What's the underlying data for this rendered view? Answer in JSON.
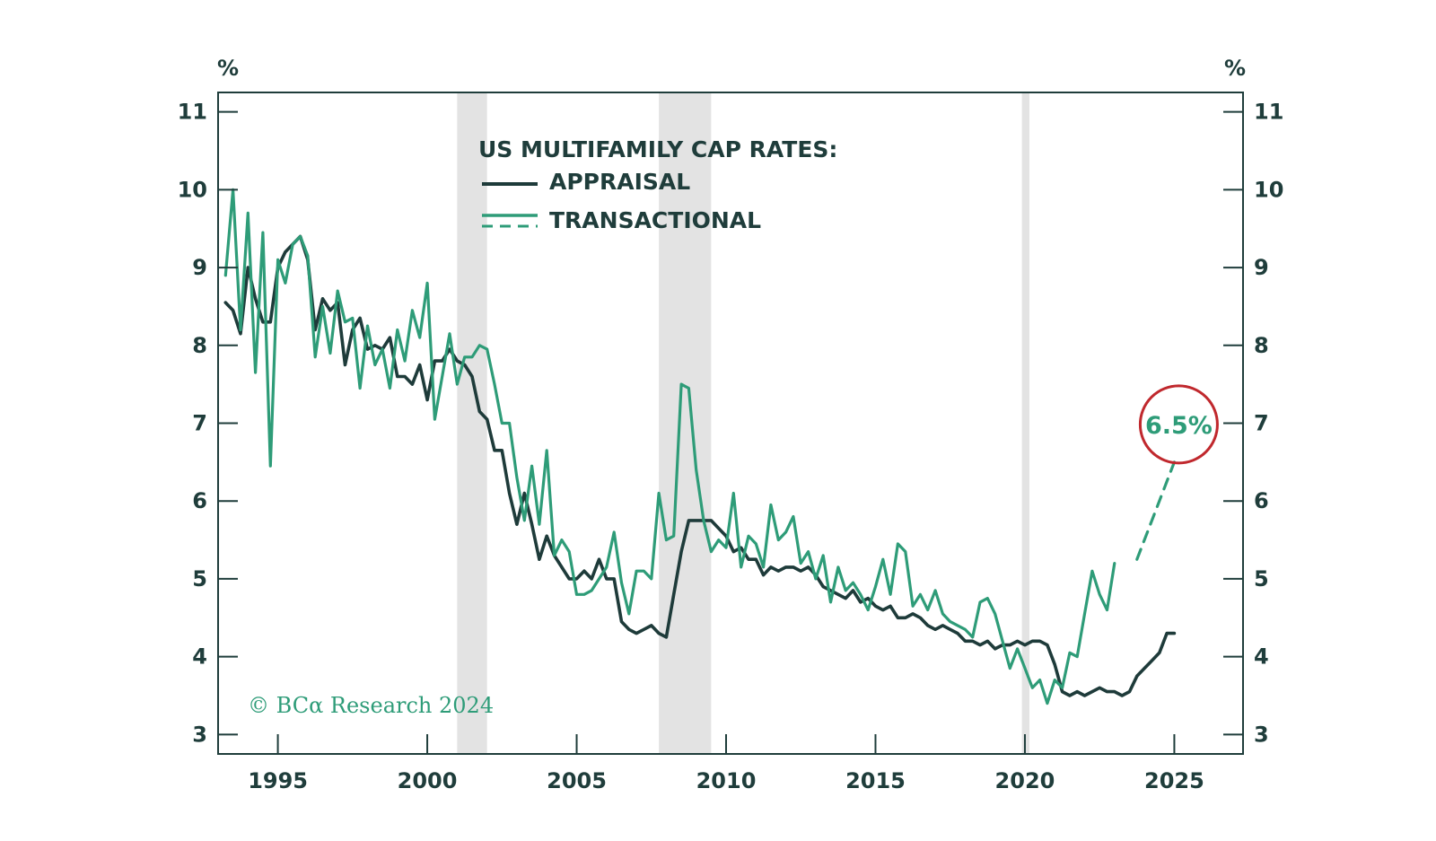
{
  "chart_data": {
    "type": "line",
    "title": "US MULTIFAMILY CAP RATES:",
    "ylabel_left": "%",
    "ylabel_right": "%",
    "ylim": [
      2.75,
      11.25
    ],
    "xlim": [
      1993.0,
      2027.3
    ],
    "yticks": [
      3,
      4,
      5,
      6,
      7,
      8,
      9,
      10,
      11
    ],
    "xticks": [
      1995,
      2000,
      2005,
      2010,
      2015,
      2020,
      2025
    ],
    "legend": {
      "appraisal_label": "APPRAISAL",
      "transactional_label": "TRANSACTIONAL"
    },
    "recessions": [
      [
        2001.0,
        2002.0
      ],
      [
        2007.75,
        2009.5
      ],
      [
        2019.9,
        2020.15
      ]
    ],
    "series": [
      {
        "name": "APPRAISAL",
        "color": "#1e3b3a",
        "start": 1993.25,
        "step": 0.25,
        "values": [
          8.55,
          8.45,
          8.15,
          9.0,
          8.6,
          8.3,
          8.3,
          9.0,
          9.2,
          9.3,
          9.4,
          9.1,
          8.2,
          8.6,
          8.45,
          8.55,
          7.75,
          8.2,
          8.35,
          7.95,
          8.0,
          7.95,
          8.1,
          7.6,
          7.6,
          7.5,
          7.75,
          7.3,
          7.8,
          7.8,
          7.95,
          7.8,
          7.75,
          7.6,
          7.15,
          7.05,
          6.65,
          6.65,
          6.1,
          5.7,
          6.1,
          5.7,
          5.25,
          5.55,
          5.3,
          5.15,
          5.0,
          5.0,
          5.1,
          5.0,
          5.25,
          5.0,
          5.0,
          4.45,
          4.35,
          4.3,
          4.35,
          4.4,
          4.3,
          4.25,
          4.8,
          5.35,
          5.75,
          5.75,
          5.75,
          5.75,
          5.65,
          5.55,
          5.35,
          5.4,
          5.25,
          5.25,
          5.05,
          5.15,
          5.1,
          5.15,
          5.15,
          5.1,
          5.15,
          5.05,
          4.9,
          4.85,
          4.8,
          4.75,
          4.85,
          4.7,
          4.75,
          4.65,
          4.6,
          4.65,
          4.5,
          4.5,
          4.55,
          4.5,
          4.4,
          4.35,
          4.4,
          4.35,
          4.3,
          4.2,
          4.2,
          4.15,
          4.2,
          4.1,
          4.15,
          4.15,
          4.2,
          4.15,
          4.2,
          4.2,
          4.15,
          3.9,
          3.55,
          3.5,
          3.55,
          3.5,
          3.55,
          3.6,
          3.55,
          3.55,
          3.5,
          3.55,
          3.75,
          3.85,
          3.95,
          4.05,
          4.3,
          4.3
        ]
      },
      {
        "name": "TRANSACTIONAL",
        "color": "#2e9c78",
        "start": 1993.25,
        "step": 0.25,
        "values": [
          8.9,
          10.0,
          8.2,
          9.7,
          7.65,
          9.45,
          6.45,
          9.1,
          8.8,
          9.3,
          9.4,
          9.15,
          7.85,
          8.5,
          7.9,
          8.7,
          8.3,
          8.35,
          7.45,
          8.25,
          7.75,
          7.95,
          7.45,
          8.2,
          7.8,
          8.45,
          8.1,
          8.8,
          7.05,
          7.6,
          8.15,
          7.5,
          7.85,
          7.85,
          8.0,
          7.95,
          7.5,
          7.0,
          7.0,
          6.3,
          5.75,
          6.45,
          5.7,
          6.65,
          5.3,
          5.5,
          5.35,
          4.8,
          4.8,
          4.85,
          5.0,
          5.15,
          5.6,
          4.95,
          4.55,
          5.1,
          5.1,
          5.0,
          6.1,
          5.5,
          5.55,
          7.5,
          7.45,
          6.4,
          5.75,
          5.35,
          5.5,
          5.4,
          6.1,
          5.15,
          5.55,
          5.45,
          5.15,
          5.95,
          5.5,
          5.6,
          5.8,
          5.2,
          5.35,
          5.0,
          5.3,
          4.7,
          5.15,
          4.85,
          4.95,
          4.8,
          4.6,
          4.9,
          5.25,
          4.8,
          5.45,
          5.35,
          4.65,
          4.8,
          4.6,
          4.85,
          4.55,
          4.45,
          4.4,
          4.35,
          4.25,
          4.7,
          4.75,
          4.55,
          4.2,
          3.85,
          4.1,
          3.85,
          3.6,
          3.7,
          3.4,
          3.7,
          3.6,
          4.05,
          4.0,
          4.55,
          5.1,
          4.8,
          4.6,
          5.2
        ]
      },
      {
        "name": "TRANSACTIONAL (projection)",
        "color": "#2e9c78",
        "dashed": true,
        "x": [
          2023.75,
          2025.0
        ],
        "values": [
          5.25,
          6.5
        ]
      }
    ],
    "annotation": {
      "text": "6.5%",
      "x": 2025.0,
      "y": 6.5,
      "ring_color": "#c0282d"
    },
    "credit": "© BCα Research 2024"
  },
  "colors": {
    "axis": "#1f3d3b",
    "recession": "#e3e3e3",
    "appraisal": "#1e3b3a",
    "transactional": "#2e9c78",
    "callout_ring": "#c0282d"
  }
}
